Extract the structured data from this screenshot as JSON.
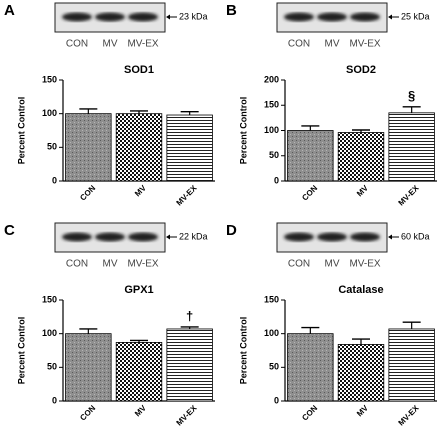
{
  "chart_data": [
    {
      "type": "bar",
      "panel": "A",
      "title": "SOD1",
      "y_label": "Percent Control",
      "blot": {
        "lanes": [
          "CON",
          "MV",
          "MV-EX"
        ],
        "marker": "23 kDa"
      },
      "categories": [
        "CON",
        "MV",
        "MV-EX"
      ],
      "values": [
        100,
        100,
        98
      ],
      "errors": [
        7,
        4,
        5
      ],
      "ylim": [
        0,
        150
      ],
      "yticks": [
        0,
        50,
        100,
        150
      ]
    },
    {
      "type": "bar",
      "panel": "B",
      "title": "SOD2",
      "y_label": "Percent Control",
      "blot": {
        "lanes": [
          "CON",
          "MV",
          "MV-EX"
        ],
        "marker": "25 kDa"
      },
      "categories": [
        "CON",
        "MV",
        "MV-EX"
      ],
      "values": [
        100,
        96,
        135
      ],
      "errors": [
        9,
        5,
        12
      ],
      "bar_annotations": [
        null,
        null,
        "§"
      ],
      "ylim": [
        0,
        200
      ],
      "yticks": [
        0,
        50,
        100,
        150,
        200
      ]
    },
    {
      "type": "bar",
      "panel": "C",
      "title": "GPX1",
      "y_label": "Percent Control",
      "blot": {
        "lanes": [
          "CON",
          "MV",
          "MV-EX"
        ],
        "marker": "22 kDa"
      },
      "categories": [
        "CON",
        "MV",
        "MV-EX"
      ],
      "values": [
        100,
        87,
        107
      ],
      "errors": [
        7,
        3,
        3
      ],
      "bar_annotations": [
        null,
        null,
        "†"
      ],
      "ylim": [
        0,
        150
      ],
      "yticks": [
        0,
        50,
        100,
        150
      ]
    },
    {
      "type": "bar",
      "panel": "D",
      "title": "Catalase",
      "y_label": "Percent Control",
      "blot": {
        "lanes": [
          "CON",
          "MV",
          "MV-EX"
        ],
        "marker": "60 kDa"
      },
      "categories": [
        "CON",
        "MV",
        "MV-EX"
      ],
      "values": [
        100,
        84,
        107
      ],
      "errors": [
        9,
        8,
        10
      ],
      "ylim": [
        0,
        150
      ],
      "yticks": [
        0,
        50,
        100,
        150
      ]
    }
  ]
}
